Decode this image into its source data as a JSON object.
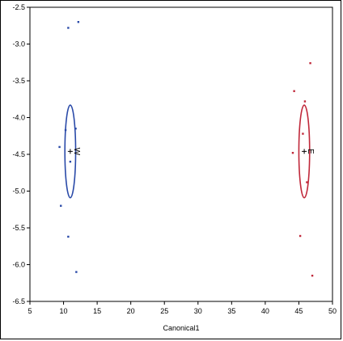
{
  "chart_data": {
    "type": "scatter",
    "title": "",
    "xlabel": "Canonical1",
    "ylabel": "",
    "xlim": [
      5,
      50
    ],
    "ylim": [
      -6.5,
      -2.5
    ],
    "xticks": [
      "5",
      "10",
      "15",
      "20",
      "25",
      "30",
      "35",
      "40",
      "45",
      "50"
    ],
    "xtick_values": [
      5,
      10,
      15,
      20,
      25,
      30,
      35,
      40,
      45,
      50
    ],
    "yticks": [
      "-2.5",
      "-3.0",
      "-3.5",
      "-4.0",
      "-4.5",
      "-5.0",
      "-5.5",
      "-6.0",
      "-6.5"
    ],
    "ytick_values": [
      -2.5,
      -3.0,
      -3.5,
      -4.0,
      -4.5,
      -5.0,
      -5.5,
      -6.0,
      -6.5
    ],
    "grid": false,
    "groups": [
      {
        "label": "W",
        "color": "#2a4aa8",
        "mean": [
          11.0,
          -4.46
        ],
        "ellipse_radii": [
          0.8,
          0.63
        ],
        "points": [
          [
            12.2,
            -2.7
          ],
          [
            10.7,
            -2.78
          ],
          [
            10.3,
            -4.17
          ],
          [
            11.8,
            -4.15
          ],
          [
            9.4,
            -4.4
          ],
          [
            11.0,
            -4.6
          ],
          [
            9.6,
            -5.2
          ],
          [
            10.7,
            -5.62
          ],
          [
            11.9,
            -6.1
          ]
        ]
      },
      {
        "label": "E",
        "color": "#c0283a",
        "mean": [
          45.8,
          -4.46
        ],
        "ellipse_radii": [
          0.8,
          0.63
        ],
        "points": [
          [
            46.7,
            -3.26
          ],
          [
            44.3,
            -3.64
          ],
          [
            45.9,
            -3.78
          ],
          [
            45.6,
            -4.22
          ],
          [
            44.1,
            -4.48
          ],
          [
            46.2,
            -4.88
          ],
          [
            45.2,
            -5.61
          ],
          [
            47.0,
            -6.15
          ]
        ]
      }
    ]
  }
}
